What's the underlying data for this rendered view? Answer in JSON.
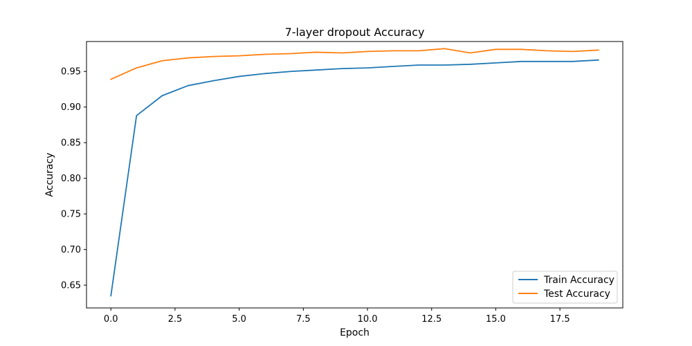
{
  "chart_data": {
    "type": "line",
    "title": "7-layer dropout Accuracy",
    "xlabel": "Epoch",
    "ylabel": "Accuracy",
    "xlim": [
      -0.95,
      19.95
    ],
    "ylim": [
      0.618,
      0.992
    ],
    "xticks": [
      0.0,
      2.5,
      5.0,
      7.5,
      10.0,
      12.5,
      15.0,
      17.5
    ],
    "xtick_labels": [
      "0.0",
      "2.5",
      "5.0",
      "7.5",
      "10.0",
      "12.5",
      "15.0",
      "17.5"
    ],
    "yticks": [
      0.65,
      0.7,
      0.75,
      0.8,
      0.85,
      0.9,
      0.95
    ],
    "ytick_labels": [
      "0.65",
      "0.70",
      "0.75",
      "0.80",
      "0.85",
      "0.90",
      "0.95"
    ],
    "legend_position": "lower-right",
    "x": [
      0,
      1,
      2,
      3,
      4,
      5,
      6,
      7,
      8,
      9,
      10,
      11,
      12,
      13,
      14,
      15,
      16,
      17,
      18,
      19
    ],
    "series": [
      {
        "name": "Train Accuracy",
        "color": "#1f77b4",
        "values": [
          0.635,
          0.888,
          0.916,
          0.93,
          0.937,
          0.943,
          0.947,
          0.95,
          0.952,
          0.954,
          0.955,
          0.957,
          0.959,
          0.959,
          0.96,
          0.962,
          0.964,
          0.964,
          0.964,
          0.966
        ]
      },
      {
        "name": "Test Accuracy",
        "color": "#ff7f0e",
        "values": [
          0.939,
          0.955,
          0.965,
          0.969,
          0.971,
          0.972,
          0.974,
          0.975,
          0.977,
          0.976,
          0.978,
          0.979,
          0.979,
          0.982,
          0.976,
          0.981,
          0.981,
          0.979,
          0.978,
          0.98
        ]
      }
    ]
  }
}
